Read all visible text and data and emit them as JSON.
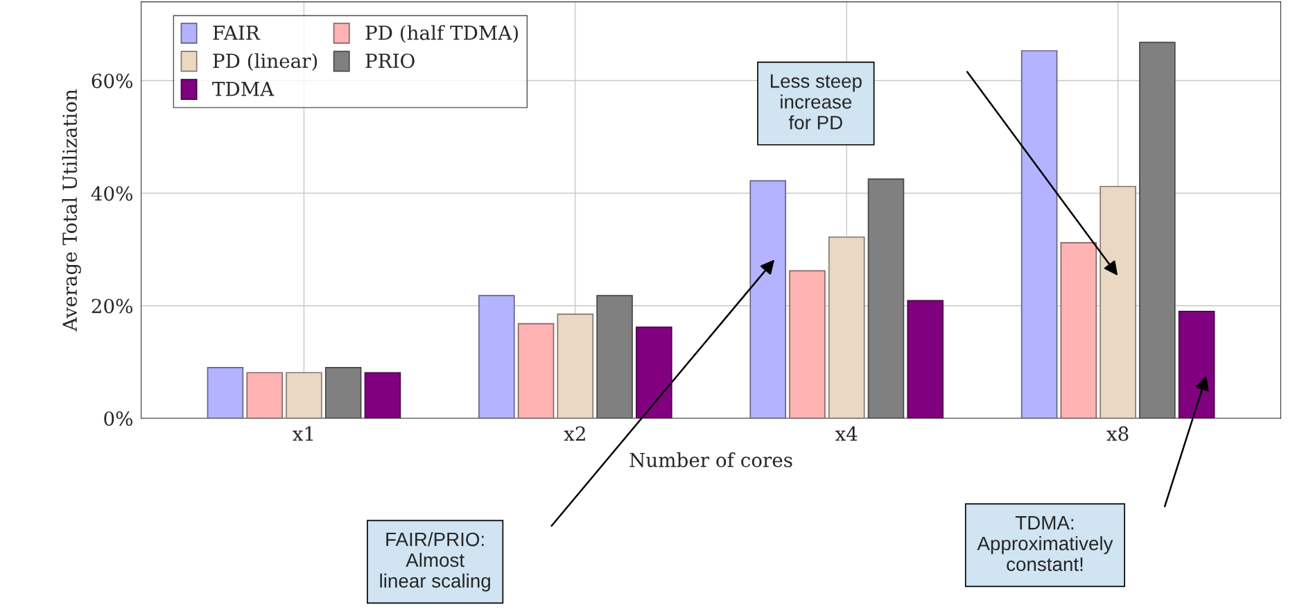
{
  "chart_data": {
    "type": "bar",
    "xlabel": "Number of cores",
    "ylabel": "Average Total Utilization",
    "categories": [
      "x1",
      "x2",
      "x4",
      "x8"
    ],
    "series": [
      {
        "name": "FAIR",
        "color": "#b3b3ff",
        "values": [
          9.0,
          21.8,
          42.2,
          65.3
        ]
      },
      {
        "name": "PD (half TDMA)",
        "color": "#ffb3b3",
        "values": [
          8.1,
          16.8,
          26.2,
          31.2
        ]
      },
      {
        "name": "PD (linear)",
        "color": "#ead8c3",
        "values": [
          8.1,
          18.5,
          32.2,
          41.2
        ]
      },
      {
        "name": "PRIO",
        "color": "#808080",
        "values": [
          9.0,
          21.8,
          42.5,
          66.8
        ]
      },
      {
        "name": "TDMA",
        "color": "#800080",
        "values": [
          8.1,
          16.2,
          20.9,
          19.0
        ]
      }
    ],
    "ylim": [
      0,
      74
    ],
    "yticks": [
      {
        "value": 0,
        "label": "0%"
      },
      {
        "value": 20,
        "label": "20%"
      },
      {
        "value": 40,
        "label": "40%"
      },
      {
        "value": 60,
        "label": "60%"
      }
    ],
    "grid": true,
    "legend": "top left",
    "annotations": [
      "Less steep\nincrease\nfor PD",
      "FAIR/PRIO:\nAlmost\nlinear scaling",
      "TDMA:\nApproximatively\nconstant!"
    ]
  }
}
